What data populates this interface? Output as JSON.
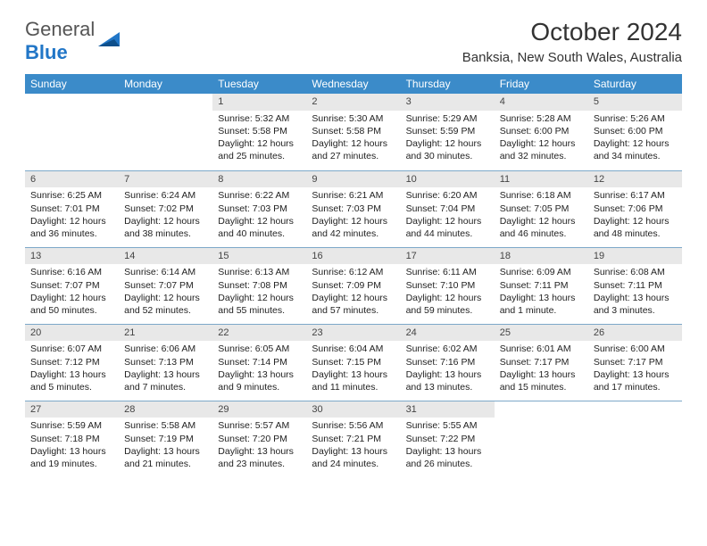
{
  "logo": {
    "text1": "General",
    "text2": "Blue"
  },
  "title": "October 2024",
  "location": "Banksia, New South Wales, Australia",
  "colors": {
    "header_bg": "#3b8bc9",
    "header_text": "#ffffff",
    "daynum_bg": "#e8e8e8",
    "border": "#7da8c9",
    "logo_gray": "#555555",
    "logo_blue": "#2176c7"
  },
  "day_headers": [
    "Sunday",
    "Monday",
    "Tuesday",
    "Wednesday",
    "Thursday",
    "Friday",
    "Saturday"
  ],
  "weeks": [
    [
      {
        "day": "",
        "sunrise": "",
        "sunset": "",
        "daylight1": "",
        "daylight2": ""
      },
      {
        "day": "",
        "sunrise": "",
        "sunset": "",
        "daylight1": "",
        "daylight2": ""
      },
      {
        "day": "1",
        "sunrise": "Sunrise: 5:32 AM",
        "sunset": "Sunset: 5:58 PM",
        "daylight1": "Daylight: 12 hours",
        "daylight2": "and 25 minutes."
      },
      {
        "day": "2",
        "sunrise": "Sunrise: 5:30 AM",
        "sunset": "Sunset: 5:58 PM",
        "daylight1": "Daylight: 12 hours",
        "daylight2": "and 27 minutes."
      },
      {
        "day": "3",
        "sunrise": "Sunrise: 5:29 AM",
        "sunset": "Sunset: 5:59 PM",
        "daylight1": "Daylight: 12 hours",
        "daylight2": "and 30 minutes."
      },
      {
        "day": "4",
        "sunrise": "Sunrise: 5:28 AM",
        "sunset": "Sunset: 6:00 PM",
        "daylight1": "Daylight: 12 hours",
        "daylight2": "and 32 minutes."
      },
      {
        "day": "5",
        "sunrise": "Sunrise: 5:26 AM",
        "sunset": "Sunset: 6:00 PM",
        "daylight1": "Daylight: 12 hours",
        "daylight2": "and 34 minutes."
      }
    ],
    [
      {
        "day": "6",
        "sunrise": "Sunrise: 6:25 AM",
        "sunset": "Sunset: 7:01 PM",
        "daylight1": "Daylight: 12 hours",
        "daylight2": "and 36 minutes."
      },
      {
        "day": "7",
        "sunrise": "Sunrise: 6:24 AM",
        "sunset": "Sunset: 7:02 PM",
        "daylight1": "Daylight: 12 hours",
        "daylight2": "and 38 minutes."
      },
      {
        "day": "8",
        "sunrise": "Sunrise: 6:22 AM",
        "sunset": "Sunset: 7:03 PM",
        "daylight1": "Daylight: 12 hours",
        "daylight2": "and 40 minutes."
      },
      {
        "day": "9",
        "sunrise": "Sunrise: 6:21 AM",
        "sunset": "Sunset: 7:03 PM",
        "daylight1": "Daylight: 12 hours",
        "daylight2": "and 42 minutes."
      },
      {
        "day": "10",
        "sunrise": "Sunrise: 6:20 AM",
        "sunset": "Sunset: 7:04 PM",
        "daylight1": "Daylight: 12 hours",
        "daylight2": "and 44 minutes."
      },
      {
        "day": "11",
        "sunrise": "Sunrise: 6:18 AM",
        "sunset": "Sunset: 7:05 PM",
        "daylight1": "Daylight: 12 hours",
        "daylight2": "and 46 minutes."
      },
      {
        "day": "12",
        "sunrise": "Sunrise: 6:17 AM",
        "sunset": "Sunset: 7:06 PM",
        "daylight1": "Daylight: 12 hours",
        "daylight2": "and 48 minutes."
      }
    ],
    [
      {
        "day": "13",
        "sunrise": "Sunrise: 6:16 AM",
        "sunset": "Sunset: 7:07 PM",
        "daylight1": "Daylight: 12 hours",
        "daylight2": "and 50 minutes."
      },
      {
        "day": "14",
        "sunrise": "Sunrise: 6:14 AM",
        "sunset": "Sunset: 7:07 PM",
        "daylight1": "Daylight: 12 hours",
        "daylight2": "and 52 minutes."
      },
      {
        "day": "15",
        "sunrise": "Sunrise: 6:13 AM",
        "sunset": "Sunset: 7:08 PM",
        "daylight1": "Daylight: 12 hours",
        "daylight2": "and 55 minutes."
      },
      {
        "day": "16",
        "sunrise": "Sunrise: 6:12 AM",
        "sunset": "Sunset: 7:09 PM",
        "daylight1": "Daylight: 12 hours",
        "daylight2": "and 57 minutes."
      },
      {
        "day": "17",
        "sunrise": "Sunrise: 6:11 AM",
        "sunset": "Sunset: 7:10 PM",
        "daylight1": "Daylight: 12 hours",
        "daylight2": "and 59 minutes."
      },
      {
        "day": "18",
        "sunrise": "Sunrise: 6:09 AM",
        "sunset": "Sunset: 7:11 PM",
        "daylight1": "Daylight: 13 hours",
        "daylight2": "and 1 minute."
      },
      {
        "day": "19",
        "sunrise": "Sunrise: 6:08 AM",
        "sunset": "Sunset: 7:11 PM",
        "daylight1": "Daylight: 13 hours",
        "daylight2": "and 3 minutes."
      }
    ],
    [
      {
        "day": "20",
        "sunrise": "Sunrise: 6:07 AM",
        "sunset": "Sunset: 7:12 PM",
        "daylight1": "Daylight: 13 hours",
        "daylight2": "and 5 minutes."
      },
      {
        "day": "21",
        "sunrise": "Sunrise: 6:06 AM",
        "sunset": "Sunset: 7:13 PM",
        "daylight1": "Daylight: 13 hours",
        "daylight2": "and 7 minutes."
      },
      {
        "day": "22",
        "sunrise": "Sunrise: 6:05 AM",
        "sunset": "Sunset: 7:14 PM",
        "daylight1": "Daylight: 13 hours",
        "daylight2": "and 9 minutes."
      },
      {
        "day": "23",
        "sunrise": "Sunrise: 6:04 AM",
        "sunset": "Sunset: 7:15 PM",
        "daylight1": "Daylight: 13 hours",
        "daylight2": "and 11 minutes."
      },
      {
        "day": "24",
        "sunrise": "Sunrise: 6:02 AM",
        "sunset": "Sunset: 7:16 PM",
        "daylight1": "Daylight: 13 hours",
        "daylight2": "and 13 minutes."
      },
      {
        "day": "25",
        "sunrise": "Sunrise: 6:01 AM",
        "sunset": "Sunset: 7:17 PM",
        "daylight1": "Daylight: 13 hours",
        "daylight2": "and 15 minutes."
      },
      {
        "day": "26",
        "sunrise": "Sunrise: 6:00 AM",
        "sunset": "Sunset: 7:17 PM",
        "daylight1": "Daylight: 13 hours",
        "daylight2": "and 17 minutes."
      }
    ],
    [
      {
        "day": "27",
        "sunrise": "Sunrise: 5:59 AM",
        "sunset": "Sunset: 7:18 PM",
        "daylight1": "Daylight: 13 hours",
        "daylight2": "and 19 minutes."
      },
      {
        "day": "28",
        "sunrise": "Sunrise: 5:58 AM",
        "sunset": "Sunset: 7:19 PM",
        "daylight1": "Daylight: 13 hours",
        "daylight2": "and 21 minutes."
      },
      {
        "day": "29",
        "sunrise": "Sunrise: 5:57 AM",
        "sunset": "Sunset: 7:20 PM",
        "daylight1": "Daylight: 13 hours",
        "daylight2": "and 23 minutes."
      },
      {
        "day": "30",
        "sunrise": "Sunrise: 5:56 AM",
        "sunset": "Sunset: 7:21 PM",
        "daylight1": "Daylight: 13 hours",
        "daylight2": "and 24 minutes."
      },
      {
        "day": "31",
        "sunrise": "Sunrise: 5:55 AM",
        "sunset": "Sunset: 7:22 PM",
        "daylight1": "Daylight: 13 hours",
        "daylight2": "and 26 minutes."
      },
      {
        "day": "",
        "sunrise": "",
        "sunset": "",
        "daylight1": "",
        "daylight2": ""
      },
      {
        "day": "",
        "sunrise": "",
        "sunset": "",
        "daylight1": "",
        "daylight2": ""
      }
    ]
  ]
}
